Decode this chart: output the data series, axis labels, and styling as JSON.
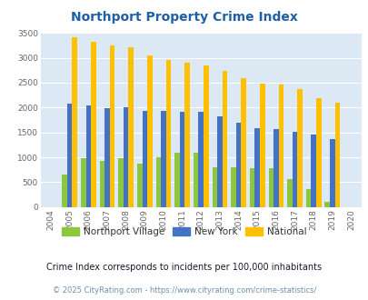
{
  "title": "Northport Property Crime Index",
  "years": [
    2004,
    2005,
    2006,
    2007,
    2008,
    2009,
    2010,
    2011,
    2012,
    2013,
    2014,
    2015,
    2016,
    2017,
    2018,
    2019,
    2020
  ],
  "northport": [
    0,
    650,
    975,
    930,
    975,
    870,
    1000,
    1100,
    1100,
    800,
    800,
    780,
    780,
    570,
    360,
    110,
    0
  ],
  "new_york": [
    0,
    2075,
    2040,
    1985,
    2005,
    1940,
    1940,
    1920,
    1920,
    1820,
    1700,
    1590,
    1560,
    1510,
    1450,
    1370,
    0
  ],
  "national": [
    0,
    3410,
    3325,
    3245,
    3210,
    3040,
    2950,
    2905,
    2855,
    2730,
    2585,
    2485,
    2460,
    2370,
    2195,
    2105,
    0
  ],
  "color_northport": "#8dc63f",
  "color_newyork": "#4472c4",
  "color_national": "#ffc000",
  "color_bg": "#dce9f5",
  "ylabel_max": 3500,
  "yticks": [
    0,
    500,
    1000,
    1500,
    2000,
    2500,
    3000,
    3500
  ],
  "legend_labels": [
    "Northport Village",
    "New York",
    "National"
  ],
  "subtitle": "Crime Index corresponds to incidents per 100,000 inhabitants",
  "footer": "© 2025 CityRating.com - https://www.cityrating.com/crime-statistics/",
  "title_color": "#1f5fa6",
  "subtitle_color": "#1a1a2e",
  "footer_color": "#7090b0"
}
